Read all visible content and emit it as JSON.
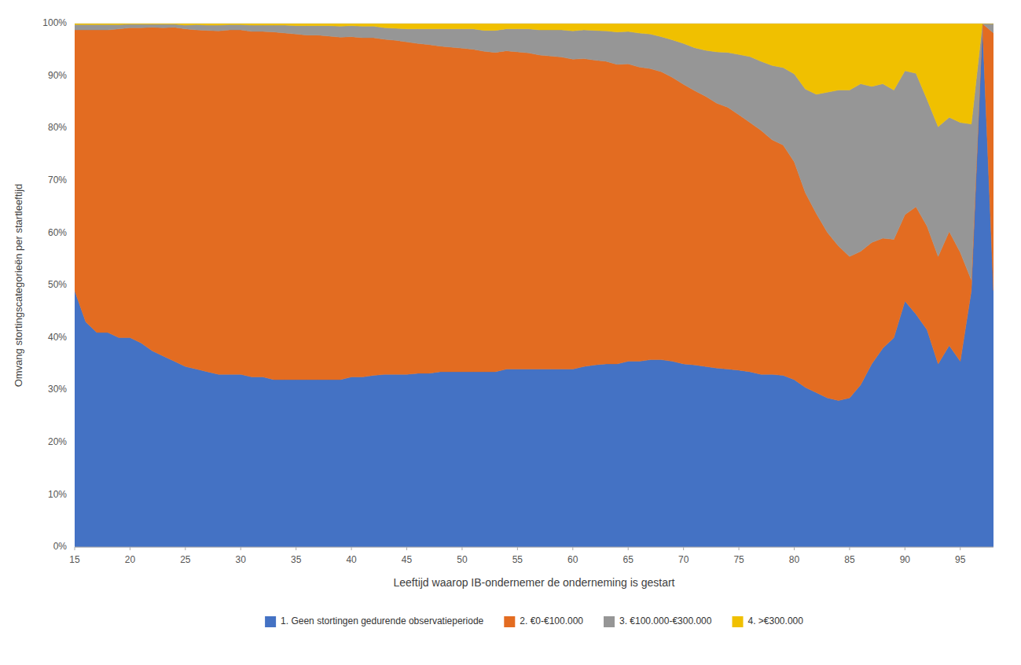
{
  "chart_data": {
    "type": "area",
    "stacked": true,
    "xlabel": "Leeftijd waarop IB-ondernemer de onderneming is gestart",
    "ylabel": "Omvang stortingscategorieën per startleeftijd",
    "x": [
      15,
      16,
      17,
      18,
      19,
      20,
      21,
      22,
      23,
      24,
      25,
      26,
      27,
      28,
      29,
      30,
      31,
      32,
      33,
      34,
      35,
      36,
      37,
      38,
      39,
      40,
      41,
      42,
      43,
      44,
      45,
      46,
      47,
      48,
      49,
      50,
      51,
      52,
      53,
      54,
      55,
      56,
      57,
      58,
      59,
      60,
      61,
      62,
      63,
      64,
      65,
      66,
      67,
      68,
      69,
      70,
      71,
      72,
      73,
      74,
      75,
      76,
      77,
      78,
      79,
      80,
      81,
      82,
      83,
      84,
      85,
      86,
      87,
      88,
      89,
      90,
      91,
      92,
      93,
      94,
      95,
      96,
      97,
      98
    ],
    "xlim": [
      15,
      98
    ],
    "xticks": [
      15,
      20,
      25,
      30,
      35,
      40,
      45,
      50,
      55,
      60,
      65,
      70,
      75,
      80,
      85,
      90,
      95
    ],
    "ylim": [
      0,
      1.0
    ],
    "yticks": [
      {
        "value": 0,
        "label": "0%"
      },
      {
        "value": 0.1,
        "label": "10%"
      },
      {
        "value": 0.2,
        "label": "20%"
      },
      {
        "value": 0.3,
        "label": "30%"
      },
      {
        "value": 0.4,
        "label": "40%"
      },
      {
        "value": 0.5,
        "label": "50%"
      },
      {
        "value": 0.6,
        "label": "60%"
      },
      {
        "value": 0.7,
        "label": "70%"
      },
      {
        "value": 0.8,
        "label": "80%"
      },
      {
        "value": 0.9,
        "label": "90%"
      },
      {
        "value": 1.0,
        "label": "100%"
      }
    ],
    "grid": true,
    "legend": "bottom",
    "series": [
      {
        "name": "1. Geen stortingen gedurende observatieperiode",
        "color": "#4472C4",
        "values": [
          0.49,
          0.43,
          0.41,
          0.41,
          0.4,
          0.4,
          0.39,
          0.375,
          0.365,
          0.355,
          0.345,
          0.34,
          0.335,
          0.33,
          0.33,
          0.33,
          0.325,
          0.325,
          0.32,
          0.32,
          0.32,
          0.32,
          0.32,
          0.32,
          0.32,
          0.325,
          0.325,
          0.328,
          0.33,
          0.33,
          0.33,
          0.332,
          0.332,
          0.335,
          0.335,
          0.335,
          0.335,
          0.335,
          0.335,
          0.34,
          0.34,
          0.34,
          0.34,
          0.34,
          0.34,
          0.34,
          0.345,
          0.348,
          0.35,
          0.35,
          0.355,
          0.355,
          0.358,
          0.358,
          0.355,
          0.35,
          0.348,
          0.345,
          0.342,
          0.34,
          0.338,
          0.335,
          0.33,
          0.33,
          0.328,
          0.32,
          0.305,
          0.295,
          0.285,
          0.28,
          0.285,
          0.31,
          0.35,
          0.38,
          0.4,
          0.47,
          0.445,
          0.415,
          0.35,
          0.385,
          0.355,
          0.49,
          1.0,
          0.49
        ]
      },
      {
        "name": "2. €0-€100.000",
        "color": "#E36C21",
        "values": [
          0.498,
          0.558,
          0.578,
          0.578,
          0.59,
          0.592,
          0.602,
          0.618,
          0.627,
          0.638,
          0.645,
          0.648,
          0.652,
          0.656,
          0.658,
          0.658,
          0.66,
          0.66,
          0.664,
          0.662,
          0.66,
          0.658,
          0.658,
          0.656,
          0.654,
          0.65,
          0.648,
          0.645,
          0.64,
          0.638,
          0.635,
          0.63,
          0.628,
          0.622,
          0.62,
          0.618,
          0.616,
          0.612,
          0.61,
          0.608,
          0.606,
          0.604,
          0.6,
          0.598,
          0.596,
          0.592,
          0.588,
          0.582,
          0.578,
          0.572,
          0.568,
          0.562,
          0.556,
          0.55,
          0.542,
          0.534,
          0.524,
          0.516,
          0.506,
          0.5,
          0.488,
          0.476,
          0.466,
          0.448,
          0.44,
          0.416,
          0.372,
          0.342,
          0.316,
          0.295,
          0.27,
          0.255,
          0.232,
          0.21,
          0.188,
          0.165,
          0.205,
          0.198,
          0.205,
          0.218,
          0.208,
          0.02,
          0.0,
          0.492
        ]
      },
      {
        "name": "3. €100.000-€300.000",
        "color": "#969696",
        "values": [
          0.01,
          0.01,
          0.01,
          0.01,
          0.008,
          0.007,
          0.007,
          0.006,
          0.007,
          0.006,
          0.007,
          0.01,
          0.01,
          0.011,
          0.01,
          0.01,
          0.012,
          0.012,
          0.013,
          0.015,
          0.016,
          0.018,
          0.018,
          0.02,
          0.021,
          0.021,
          0.022,
          0.022,
          0.022,
          0.023,
          0.025,
          0.028,
          0.03,
          0.033,
          0.035,
          0.037,
          0.039,
          0.04,
          0.042,
          0.042,
          0.044,
          0.046,
          0.048,
          0.05,
          0.052,
          0.054,
          0.055,
          0.057,
          0.058,
          0.062,
          0.062,
          0.065,
          0.066,
          0.067,
          0.072,
          0.078,
          0.082,
          0.088,
          0.098,
          0.105,
          0.115,
          0.126,
          0.132,
          0.142,
          0.148,
          0.168,
          0.198,
          0.228,
          0.268,
          0.298,
          0.318,
          0.32,
          0.298,
          0.295,
          0.285,
          0.275,
          0.255,
          0.242,
          0.248,
          0.218,
          0.248,
          0.298,
          0.0,
          0.018
        ]
      },
      {
        "name": "4. >€300.000",
        "color": "#F0C000",
        "values": [
          0.002,
          0.002,
          0.002,
          0.002,
          0.002,
          0.001,
          0.001,
          0.001,
          0.001,
          0.001,
          0.003,
          0.002,
          0.003,
          0.003,
          0.002,
          0.002,
          0.003,
          0.003,
          0.003,
          0.003,
          0.004,
          0.004,
          0.004,
          0.004,
          0.005,
          0.004,
          0.005,
          0.005,
          0.008,
          0.009,
          0.01,
          0.01,
          0.01,
          0.01,
          0.01,
          0.01,
          0.01,
          0.013,
          0.013,
          0.01,
          0.01,
          0.01,
          0.012,
          0.012,
          0.012,
          0.014,
          0.012,
          0.013,
          0.014,
          0.016,
          0.015,
          0.018,
          0.02,
          0.025,
          0.031,
          0.038,
          0.046,
          0.051,
          0.054,
          0.055,
          0.059,
          0.063,
          0.072,
          0.08,
          0.084,
          0.096,
          0.125,
          0.135,
          0.131,
          0.127,
          0.127,
          0.115,
          0.12,
          0.115,
          0.127,
          0.09,
          0.095,
          0.145,
          0.197,
          0.179,
          0.189,
          0.192,
          0.0,
          0.0
        ]
      }
    ]
  }
}
